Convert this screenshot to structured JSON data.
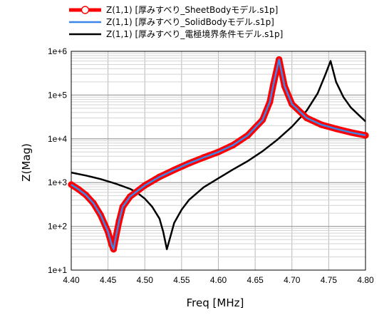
{
  "chart_data": {
    "type": "line",
    "xlabel": "Freq [MHz]",
    "ylabel": "Z(Mag)",
    "x_scale": "linear",
    "y_scale": "log",
    "xlim": [
      4.4,
      4.8
    ],
    "ylim": [
      10,
      1000000
    ],
    "x_ticks": [
      "4.40",
      "4.45",
      "4.50",
      "4.55",
      "4.60",
      "4.65",
      "4.70",
      "4.75",
      "4.80"
    ],
    "y_ticks": [
      "1e+1",
      "1e+2",
      "1e+3",
      "1e+4",
      "1e+5",
      "1e+6"
    ],
    "grid": true,
    "legend_position": "top",
    "series": [
      {
        "name": "Z(1,1) [厚みすべり_SheetBodyモデル.s1p]",
        "color": "#ff0000",
        "marker": "circle",
        "points": [
          [
            4.4,
            900
          ],
          [
            4.41,
            700
          ],
          [
            4.42,
            520
          ],
          [
            4.43,
            340
          ],
          [
            4.44,
            180
          ],
          [
            4.45,
            75
          ],
          [
            4.455,
            38
          ],
          [
            4.4575,
            30
          ],
          [
            4.46,
            50
          ],
          [
            4.465,
            130
          ],
          [
            4.47,
            280
          ],
          [
            4.48,
            480
          ],
          [
            4.5,
            860
          ],
          [
            4.52,
            1350
          ],
          [
            4.54,
            1950
          ],
          [
            4.56,
            2750
          ],
          [
            4.58,
            3750
          ],
          [
            4.6,
            5000
          ],
          [
            4.62,
            7200
          ],
          [
            4.64,
            12000
          ],
          [
            4.66,
            27000
          ],
          [
            4.67,
            70000
          ],
          [
            4.675,
            180000
          ],
          [
            4.6825,
            650000
          ],
          [
            4.69,
            160000
          ],
          [
            4.7,
            62000
          ],
          [
            4.72,
            30000
          ],
          [
            4.74,
            21000
          ],
          [
            4.76,
            17000
          ],
          [
            4.78,
            14000
          ],
          [
            4.8,
            12000
          ]
        ]
      },
      {
        "name": "Z(1,1) [厚みすべり_SolidBodyモデル.s1p]",
        "color": "#3a86e8",
        "marker": "none",
        "points": [
          [
            4.4,
            900
          ],
          [
            4.41,
            700
          ],
          [
            4.42,
            520
          ],
          [
            4.43,
            340
          ],
          [
            4.44,
            180
          ],
          [
            4.45,
            75
          ],
          [
            4.455,
            38
          ],
          [
            4.4575,
            30
          ],
          [
            4.46,
            50
          ],
          [
            4.465,
            130
          ],
          [
            4.47,
            280
          ],
          [
            4.48,
            480
          ],
          [
            4.5,
            860
          ],
          [
            4.52,
            1350
          ],
          [
            4.54,
            1950
          ],
          [
            4.56,
            2750
          ],
          [
            4.58,
            3750
          ],
          [
            4.6,
            5000
          ],
          [
            4.62,
            7200
          ],
          [
            4.64,
            12000
          ],
          [
            4.66,
            27000
          ],
          [
            4.67,
            70000
          ],
          [
            4.675,
            180000
          ],
          [
            4.6825,
            650000
          ],
          [
            4.69,
            160000
          ],
          [
            4.7,
            62000
          ],
          [
            4.72,
            30000
          ],
          [
            4.74,
            21000
          ],
          [
            4.76,
            17000
          ],
          [
            4.78,
            14000
          ],
          [
            4.8,
            12000
          ]
        ]
      },
      {
        "name": "Z(1,1) [厚みすべり_電極境界条件モデル.s1p]",
        "color": "#000000",
        "marker": "none",
        "points": [
          [
            4.4,
            1700
          ],
          [
            4.42,
            1450
          ],
          [
            4.44,
            1200
          ],
          [
            4.46,
            950
          ],
          [
            4.48,
            720
          ],
          [
            4.49,
            580
          ],
          [
            4.5,
            430
          ],
          [
            4.51,
            280
          ],
          [
            4.52,
            150
          ],
          [
            4.525,
            75
          ],
          [
            4.53,
            30
          ],
          [
            4.535,
            60
          ],
          [
            4.54,
            120
          ],
          [
            4.55,
            240
          ],
          [
            4.56,
            400
          ],
          [
            4.58,
            780
          ],
          [
            4.6,
            1250
          ],
          [
            4.62,
            2000
          ],
          [
            4.64,
            3100
          ],
          [
            4.66,
            5200
          ],
          [
            4.68,
            9500
          ],
          [
            4.7,
            19000
          ],
          [
            4.72,
            44000
          ],
          [
            4.735,
            110000
          ],
          [
            4.745,
            280000
          ],
          [
            4.7525,
            600000
          ],
          [
            4.76,
            200000
          ],
          [
            4.77,
            90000
          ],
          [
            4.78,
            52000
          ],
          [
            4.8,
            25000
          ]
        ]
      }
    ]
  }
}
